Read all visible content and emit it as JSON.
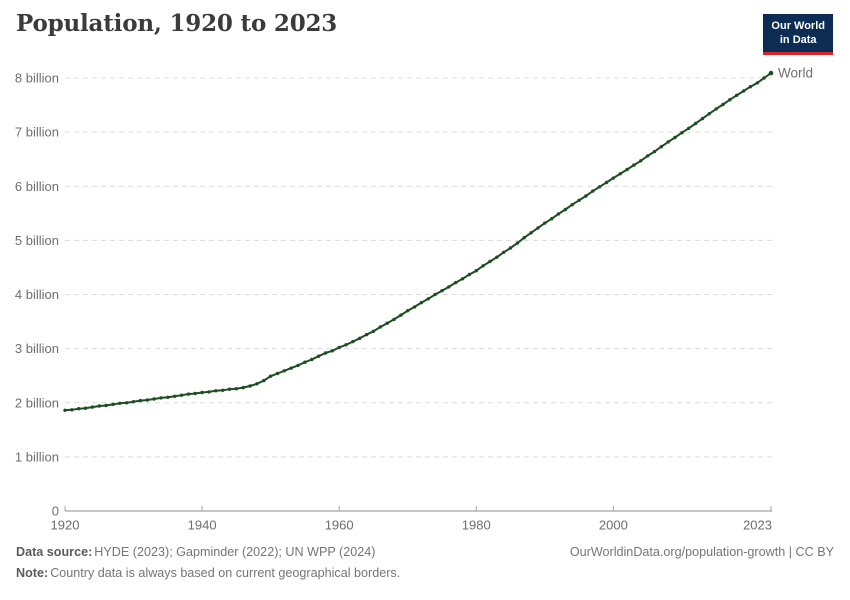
{
  "header": {
    "title": "Population, 1920 to 2023",
    "logo": {
      "line1": "Our World",
      "line2": "in Data"
    }
  },
  "chart_data": {
    "type": "line",
    "title": "Population, 1920 to 2023",
    "entity_label": "World",
    "xlabel": "",
    "ylabel": "",
    "xlim": [
      1920,
      2023
    ],
    "ylim": [
      0,
      8.3
    ],
    "grid": "horizontal-dashed",
    "legend_position": "end-of-line",
    "xticks": [
      1920,
      1940,
      1960,
      1980,
      2000,
      2023
    ],
    "yticks": [
      {
        "value": 0,
        "label": "0"
      },
      {
        "value": 1,
        "label": "1 billion"
      },
      {
        "value": 2,
        "label": "2 billion"
      },
      {
        "value": 3,
        "label": "3 billion"
      },
      {
        "value": 4,
        "label": "4 billion"
      },
      {
        "value": 5,
        "label": "5 billion"
      },
      {
        "value": 6,
        "label": "6 billion"
      },
      {
        "value": 7,
        "label": "7 billion"
      },
      {
        "value": 8,
        "label": "8 billion"
      }
    ],
    "x": [
      1920,
      1921,
      1922,
      1923,
      1924,
      1925,
      1926,
      1927,
      1928,
      1929,
      1930,
      1931,
      1932,
      1933,
      1934,
      1935,
      1936,
      1937,
      1938,
      1939,
      1940,
      1941,
      1942,
      1943,
      1944,
      1945,
      1946,
      1947,
      1948,
      1949,
      1950,
      1951,
      1952,
      1953,
      1954,
      1955,
      1956,
      1957,
      1958,
      1959,
      1960,
      1961,
      1962,
      1963,
      1964,
      1965,
      1966,
      1967,
      1968,
      1969,
      1970,
      1971,
      1972,
      1973,
      1974,
      1975,
      1976,
      1977,
      1978,
      1979,
      1980,
      1981,
      1982,
      1983,
      1984,
      1985,
      1986,
      1987,
      1988,
      1989,
      1990,
      1991,
      1992,
      1993,
      1994,
      1995,
      1996,
      1997,
      1998,
      1999,
      2000,
      2001,
      2002,
      2003,
      2004,
      2005,
      2006,
      2007,
      2008,
      2009,
      2010,
      2011,
      2012,
      2013,
      2014,
      2015,
      2016,
      2017,
      2018,
      2019,
      2020,
      2021,
      2022,
      2023
    ],
    "series": [
      {
        "name": "World",
        "unit": "billion",
        "color": "#1d4d20",
        "values": [
          1.86,
          1.87,
          1.89,
          1.9,
          1.92,
          1.94,
          1.95,
          1.97,
          1.99,
          2.0,
          2.02,
          2.04,
          2.05,
          2.07,
          2.09,
          2.1,
          2.12,
          2.14,
          2.16,
          2.17,
          2.19,
          2.2,
          2.22,
          2.23,
          2.25,
          2.26,
          2.28,
          2.31,
          2.35,
          2.41,
          2.49,
          2.54,
          2.59,
          2.64,
          2.69,
          2.75,
          2.8,
          2.86,
          2.92,
          2.96,
          3.02,
          3.07,
          3.13,
          3.19,
          3.26,
          3.32,
          3.4,
          3.47,
          3.54,
          3.62,
          3.7,
          3.77,
          3.85,
          3.92,
          4.0,
          4.07,
          4.14,
          4.22,
          4.29,
          4.37,
          4.44,
          4.53,
          4.61,
          4.69,
          4.78,
          4.86,
          4.95,
          5.05,
          5.14,
          5.23,
          5.32,
          5.4,
          5.49,
          5.57,
          5.66,
          5.74,
          5.82,
          5.91,
          5.99,
          6.07,
          6.15,
          6.23,
          6.31,
          6.39,
          6.47,
          6.56,
          6.64,
          6.73,
          6.82,
          6.9,
          6.99,
          7.07,
          7.16,
          7.25,
          7.34,
          7.43,
          7.51,
          7.6,
          7.68,
          7.76,
          7.84,
          7.91,
          8.0,
          8.09
        ]
      }
    ]
  },
  "footer": {
    "data_source_label": "Data source:",
    "data_source": "HYDE (2023); Gapminder (2022); UN WPP (2024)",
    "note_label": "Note:",
    "note": "Country data is always based on current geographical borders.",
    "attribution": "OurWorldinData.org/population-growth | CC BY"
  },
  "colors": {
    "line": "#1d4d20",
    "grid": "#dcdcdc",
    "axis": "#8f8f8f",
    "tick": "#a3a3a3",
    "tick_label": "#6e6e6e",
    "title": "#3b3b3b",
    "footer_text": "#757575",
    "logo_bg": "#0c2c54",
    "logo_accent": "#d8232a"
  }
}
